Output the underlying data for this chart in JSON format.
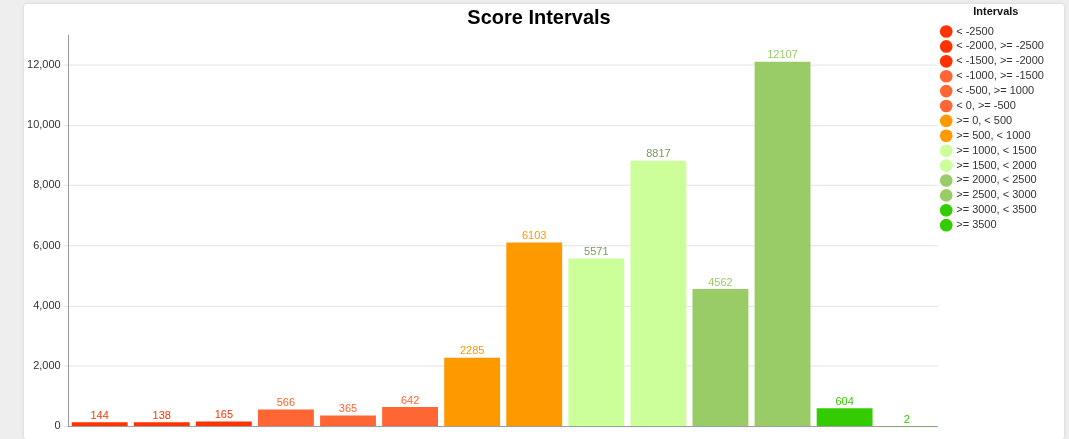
{
  "chart_data": {
    "type": "bar",
    "title": "Score Intervals",
    "legend_title": "Intervals",
    "categories": [
      null,
      null,
      null,
      null,
      null,
      null,
      null,
      null,
      null,
      null,
      null,
      null,
      null,
      null
    ],
    "series": [
      {
        "name": "< -2500",
        "color": "#ff3300",
        "values": [
          144,
          null,
          null,
          null,
          null,
          null,
          null,
          null,
          null,
          null,
          null,
          null,
          null,
          null
        ]
      },
      {
        "name": "< -2000, >= -2500",
        "color": "#ff3300",
        "values": [
          null,
          138,
          null,
          null,
          null,
          null,
          null,
          null,
          null,
          null,
          null,
          null,
          null,
          null
        ]
      },
      {
        "name": "< -1500, >= -2000",
        "color": "#ff3300",
        "values": [
          null,
          null,
          165,
          null,
          null,
          null,
          null,
          null,
          null,
          null,
          null,
          null,
          null,
          null
        ]
      },
      {
        "name": "< -1000, >= -1500",
        "color": "#ff6633",
        "values": [
          null,
          null,
          null,
          566,
          null,
          null,
          null,
          null,
          null,
          null,
          null,
          null,
          null,
          null
        ]
      },
      {
        "name": "< -500, >= 1000",
        "color": "#ff6633",
        "values": [
          null,
          null,
          null,
          null,
          365,
          null,
          null,
          null,
          null,
          null,
          null,
          null,
          null,
          null
        ]
      },
      {
        "name": "< 0, >= -500",
        "color": "#ff6633",
        "values": [
          null,
          null,
          null,
          null,
          null,
          642,
          null,
          null,
          null,
          null,
          null,
          null,
          null,
          null
        ]
      },
      {
        "name": ">= 0, < 500",
        "color": "#ff9900",
        "values": [
          null,
          null,
          null,
          null,
          null,
          null,
          2285,
          null,
          null,
          null,
          null,
          null,
          null,
          null
        ]
      },
      {
        "name": ">= 500, < 1000",
        "color": "#ff9900",
        "values": [
          null,
          null,
          null,
          null,
          null,
          null,
          null,
          6103,
          null,
          null,
          null,
          null,
          null,
          null
        ]
      },
      {
        "name": ">= 1000, < 1500",
        "color": "#ccff99",
        "values": [
          null,
          null,
          null,
          null,
          null,
          null,
          null,
          null,
          5571,
          null,
          null,
          null,
          null,
          null
        ]
      },
      {
        "name": ">= 1500, < 2000",
        "color": "#ccff99",
        "values": [
          null,
          null,
          null,
          null,
          null,
          null,
          null,
          null,
          null,
          8817,
          null,
          null,
          null,
          null
        ]
      },
      {
        "name": ">= 2000, < 2500",
        "color": "#99cc66",
        "values": [
          null,
          null,
          null,
          null,
          null,
          null,
          null,
          null,
          null,
          null,
          4562,
          null,
          null,
          null
        ]
      },
      {
        "name": ">= 2500, < 3000",
        "color": "#99cc66",
        "values": [
          null,
          null,
          null,
          null,
          null,
          null,
          null,
          null,
          null,
          null,
          null,
          12107,
          null,
          null
        ]
      },
      {
        "name": ">= 3000, < 3500",
        "color": "#33cc00",
        "values": [
          null,
          null,
          null,
          null,
          null,
          null,
          null,
          null,
          null,
          null,
          null,
          null,
          604,
          null
        ]
      },
      {
        "name": ">= 3500",
        "color": "#33cc00",
        "values": [
          null,
          null,
          null,
          null,
          null,
          null,
          null,
          null,
          null,
          null,
          null,
          null,
          null,
          2
        ]
      }
    ],
    "ylim": [
      0,
      13000
    ],
    "yticks": [
      0,
      {
        "value": 2000,
        "label": "2,000"
      },
      {
        "value": 4000,
        "label": "4,000"
      },
      {
        "value": 6000,
        "label": "6,000"
      },
      {
        "value": 8000,
        "label": "8,000"
      },
      {
        "value": 10000,
        "label": "10,000"
      },
      {
        "value": 12000,
        "label": "12,000"
      }
    ],
    "grid": "y",
    "legend": "right",
    "data_labels": true
  }
}
